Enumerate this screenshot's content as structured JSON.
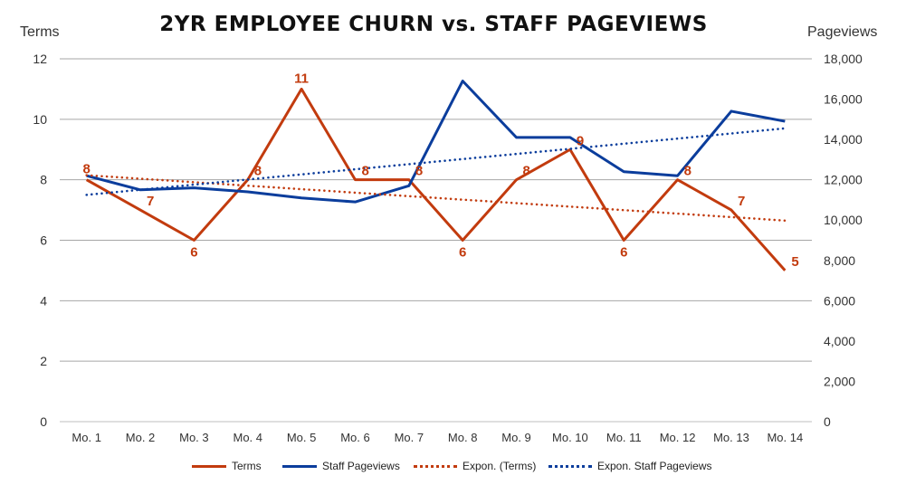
{
  "chart_data": {
    "type": "line",
    "title": "2YR EMPLOYEE CHURN vs. STAFF PAGEVIEWS",
    "categories": [
      "Mo. 1",
      "Mo. 2",
      "Mo. 3",
      "Mo. 4",
      "Mo. 5",
      "Mo. 6",
      "Mo. 7",
      "Mo. 8",
      "Mo. 9",
      "Mo. 10",
      "Mo. 11",
      "Mo. 12",
      "Mo. 13",
      "Mo. 14"
    ],
    "y_left": {
      "label": "Terms",
      "ylim": [
        0,
        12
      ],
      "ticks": [
        "0",
        "2",
        "4",
        "6",
        "8",
        "10",
        "12"
      ]
    },
    "y_right": {
      "label": "Pageviews",
      "ylim": [
        0,
        18000
      ],
      "ticks": [
        "0",
        "2,000",
        "4,000",
        "6,000",
        "8,000",
        "10,000",
        "12,000",
        "14,000",
        "16,000",
        "18,000"
      ]
    },
    "grid": true,
    "legend_position": "bottom",
    "series": [
      {
        "name": "Terms",
        "axis": "left",
        "color": "#c23b0e",
        "style": "solid",
        "values": [
          8,
          7,
          6,
          8,
          11,
          8,
          8,
          6,
          8,
          9,
          6,
          8,
          7,
          5
        ],
        "data_labels": [
          "8",
          "7",
          "6",
          "8",
          "11",
          "8",
          "8",
          "6",
          "8",
          "9",
          "6",
          "8",
          "7",
          "5"
        ]
      },
      {
        "name": "Staff Pageviews",
        "axis": "right",
        "color": "#0b3d9c",
        "style": "solid",
        "values": [
          12200,
          11500,
          11600,
          11400,
          11100,
          10900,
          11700,
          16900,
          14100,
          14100,
          12400,
          12200,
          15400,
          14900
        ]
      },
      {
        "name": "Expon. (Terms)",
        "axis": "left",
        "color": "#c23b0e",
        "style": "dotted",
        "start": 8.15,
        "end": 6.65
      },
      {
        "name": "Expon. Staff Pageviews",
        "axis": "right",
        "color": "#0b3d9c",
        "style": "dotted",
        "start": 11250,
        "end": 14550
      }
    ]
  }
}
